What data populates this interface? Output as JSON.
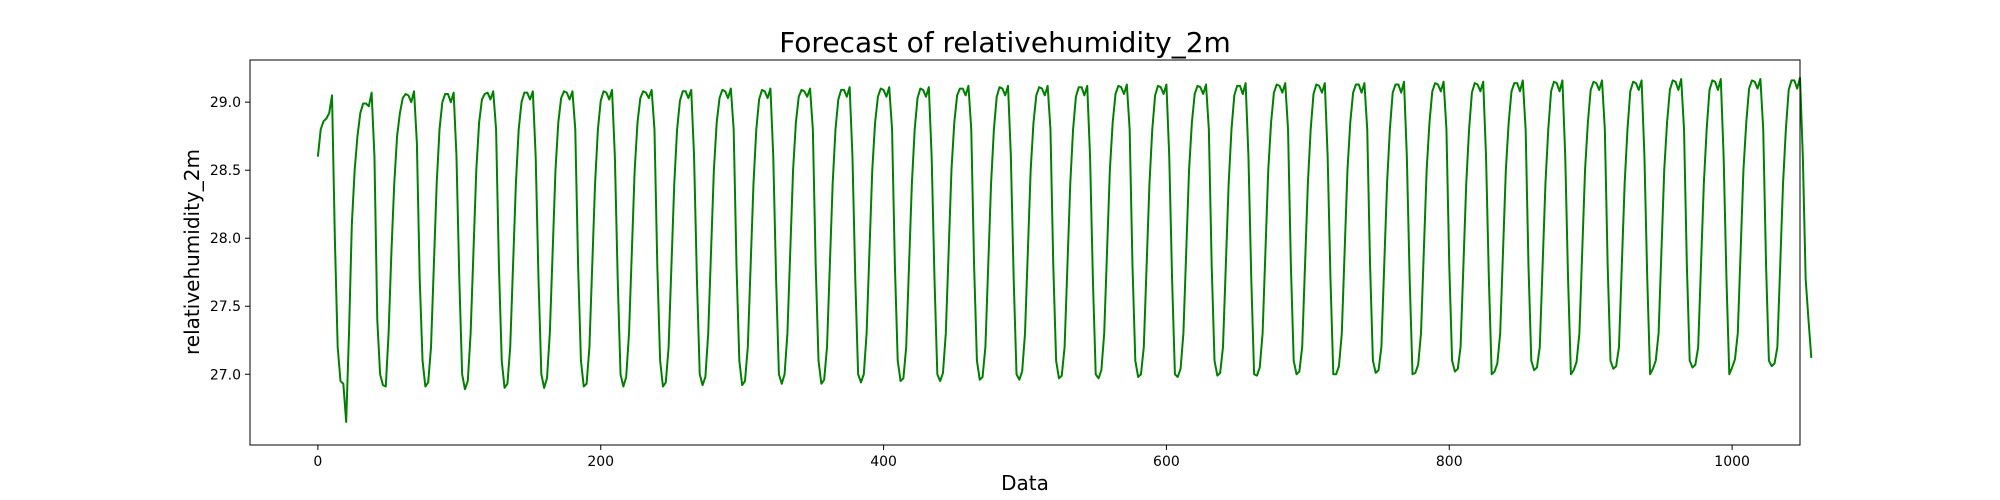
{
  "chart_data": {
    "type": "line",
    "title": "Forecast of relativehumidity_2m",
    "xlabel": "Data",
    "ylabel": "relativehumidity_2m",
    "xlim": [
      -48,
      1048
    ],
    "ylim": [
      26.48,
      29.31
    ],
    "x_ticks": [
      0,
      200,
      400,
      600,
      800,
      1000
    ],
    "x_tick_labels": [
      "0",
      "200",
      "400",
      "600",
      "800",
      "1000"
    ],
    "y_ticks": [
      27.0,
      27.5,
      28.0,
      28.5,
      29.0
    ],
    "y_tick_labels": [
      "27.0",
      "27.5",
      "28.0",
      "28.5",
      "29.0"
    ],
    "grid": false,
    "series": [
      {
        "color": "#008000",
        "sampling": "one value every 2 data steps, x from 0 to 998",
        "x_start": 0,
        "x_step": 2,
        "values": [
          28.6,
          28.8,
          28.86,
          28.88,
          28.92,
          29.05,
          28.0,
          27.2,
          26.95,
          26.93,
          26.65,
          27.3,
          28.1,
          28.5,
          28.75,
          28.92,
          28.99,
          28.99,
          28.97,
          29.07,
          28.6,
          27.4,
          27.0,
          26.92,
          26.91,
          27.3,
          27.9,
          28.4,
          28.75,
          28.92,
          29.03,
          29.06,
          29.05,
          29.0,
          29.08,
          28.7,
          27.7,
          27.1,
          26.91,
          26.94,
          27.2,
          27.8,
          28.4,
          28.8,
          29.0,
          29.06,
          29.06,
          29.0,
          29.07,
          28.6,
          27.7,
          27.0,
          26.89,
          26.95,
          27.3,
          27.9,
          28.5,
          28.85,
          29.02,
          29.06,
          29.07,
          29.02,
          29.08,
          28.8,
          27.8,
          27.1,
          26.9,
          26.93,
          27.2,
          27.8,
          28.4,
          28.8,
          29.0,
          29.07,
          29.07,
          29.02,
          29.08,
          28.6,
          27.7,
          27.0,
          26.9,
          26.97,
          27.3,
          27.9,
          28.5,
          28.85,
          29.03,
          29.08,
          29.07,
          29.02,
          29.08,
          28.8,
          27.8,
          27.1,
          26.91,
          26.93,
          27.2,
          27.8,
          28.4,
          28.8,
          29.01,
          29.08,
          29.07,
          29.02,
          29.09,
          28.6,
          27.7,
          27.0,
          26.91,
          26.98,
          27.3,
          27.9,
          28.5,
          28.85,
          29.03,
          29.08,
          29.07,
          29.03,
          29.09,
          28.8,
          27.8,
          27.1,
          26.91,
          26.94,
          27.2,
          27.8,
          28.4,
          28.8,
          29.01,
          29.08,
          29.08,
          29.03,
          29.09,
          28.6,
          27.7,
          27.0,
          26.92,
          26.98,
          27.3,
          27.9,
          28.5,
          28.85,
          29.03,
          29.09,
          29.08,
          29.03,
          29.1,
          28.8,
          27.8,
          27.1,
          26.92,
          26.95,
          27.2,
          27.8,
          28.4,
          28.8,
          29.02,
          29.09,
          29.08,
          29.03,
          29.1,
          28.6,
          27.7,
          27.0,
          26.93,
          27.0,
          27.3,
          27.9,
          28.5,
          28.85,
          29.04,
          29.09,
          29.08,
          29.04,
          29.1,
          28.8,
          27.8,
          27.1,
          26.93,
          26.96,
          27.2,
          27.8,
          28.4,
          28.8,
          29.02,
          29.09,
          29.09,
          29.04,
          29.11,
          28.6,
          27.7,
          27.0,
          26.94,
          27.0,
          27.3,
          27.9,
          28.5,
          28.85,
          29.04,
          29.1,
          29.09,
          29.04,
          29.11,
          28.8,
          27.8,
          27.1,
          26.95,
          26.97,
          27.2,
          27.8,
          28.4,
          28.8,
          29.03,
          29.1,
          29.09,
          29.04,
          29.11,
          28.6,
          27.7,
          27.0,
          26.95,
          27.01,
          27.3,
          27.9,
          28.5,
          28.85,
          29.05,
          29.1,
          29.1,
          29.05,
          29.12,
          28.8,
          27.8,
          27.1,
          26.96,
          26.98,
          27.2,
          27.8,
          28.4,
          28.8,
          29.04,
          29.11,
          29.1,
          29.05,
          29.12,
          28.6,
          27.7,
          27.0,
          26.96,
          27.02,
          27.3,
          27.9,
          28.5,
          28.85,
          29.05,
          29.11,
          29.1,
          29.05,
          29.12,
          28.8,
          27.8,
          27.1,
          26.97,
          26.99,
          27.2,
          27.8,
          28.4,
          28.8,
          29.04,
          29.11,
          29.11,
          29.05,
          29.12,
          28.6,
          27.7,
          27.0,
          26.97,
          27.03,
          27.3,
          27.9,
          28.5,
          28.85,
          29.06,
          29.12,
          29.11,
          29.06,
          29.13,
          28.8,
          27.8,
          27.1,
          26.98,
          27.0,
          27.2,
          27.8,
          28.4,
          28.8,
          29.05,
          29.12,
          29.11,
          29.06,
          29.13,
          28.6,
          27.7,
          27.0,
          26.98,
          27.04,
          27.3,
          27.9,
          28.5,
          28.85,
          29.06,
          29.12,
          29.11,
          29.06,
          29.13,
          28.8,
          27.8,
          27.1,
          26.99,
          27.01,
          27.2,
          27.8,
          28.4,
          28.8,
          29.05,
          29.12,
          29.12,
          29.06,
          29.14,
          28.6,
          27.7,
          27.0,
          26.99,
          27.05,
          27.3,
          27.9,
          28.5,
          28.85,
          29.07,
          29.13,
          29.12,
          29.07,
          29.14,
          28.8,
          27.8,
          27.1,
          27.0,
          27.02,
          27.2,
          27.8,
          28.4,
          28.8,
          29.06,
          29.13,
          29.12,
          29.07,
          29.14,
          28.6,
          27.7,
          27.0,
          27.0,
          27.06,
          27.3,
          27.9,
          28.5,
          28.85,
          29.07,
          29.13,
          29.13,
          29.07,
          29.14,
          28.8,
          27.8,
          27.1,
          27.01,
          27.03,
          27.2,
          27.8,
          28.4,
          28.8,
          29.07,
          29.13,
          29.13,
          29.07,
          29.15,
          28.6,
          27.7,
          27.0,
          27.01,
          27.07,
          27.3,
          27.9,
          28.5,
          28.85,
          29.08,
          29.14,
          29.13,
          29.08,
          29.15,
          28.8,
          27.8,
          27.1,
          27.02,
          27.04,
          27.2,
          27.8,
          28.4,
          28.8,
          29.07,
          29.14,
          29.13,
          29.08,
          29.15,
          28.6,
          27.7,
          27.0,
          27.02,
          27.08,
          27.3,
          27.9,
          28.5,
          28.85,
          29.08,
          29.14,
          29.14,
          29.08,
          29.16,
          28.8,
          27.8,
          27.1,
          27.03,
          27.05,
          27.2,
          27.8,
          28.4,
          28.8,
          29.08,
          29.15,
          29.14,
          29.08,
          29.16,
          28.6,
          27.7,
          27.0,
          27.03,
          27.09,
          27.3,
          27.9,
          28.5,
          28.85,
          29.09,
          29.15,
          29.14,
          29.09,
          29.16,
          28.8,
          27.8,
          27.1,
          27.04,
          27.06,
          27.2,
          27.8,
          28.4,
          28.8,
          29.08,
          29.15,
          29.14,
          29.09,
          29.16,
          28.6,
          27.7,
          27.0,
          27.04,
          27.1,
          27.3,
          27.9,
          28.5,
          28.85,
          29.09,
          29.16,
          29.15,
          29.09,
          29.17,
          28.8,
          27.8,
          27.1,
          27.05,
          27.07,
          27.2,
          27.8,
          28.4,
          28.8,
          29.09,
          29.16,
          29.15,
          29.09,
          29.17,
          28.6,
          27.7,
          27.0,
          27.05,
          27.11,
          27.3,
          27.9,
          28.5,
          28.85,
          29.1,
          29.16,
          29.15,
          29.1,
          29.17,
          28.8,
          27.8,
          27.1,
          27.06,
          27.08,
          27.2,
          27.8,
          28.4,
          28.8,
          29.09,
          29.16,
          29.16,
          29.1,
          29.18,
          28.6,
          27.7,
          27.4,
          27.12
        ]
      }
    ]
  }
}
